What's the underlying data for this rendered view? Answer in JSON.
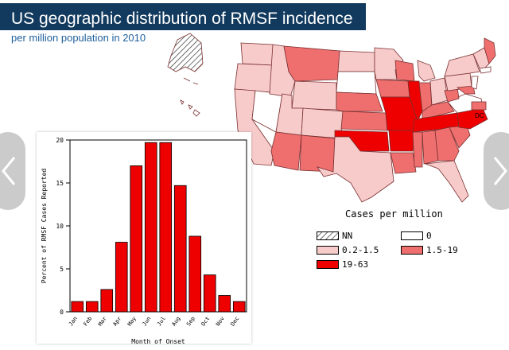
{
  "header": {
    "title": "US geographic distribution of RMSF incidence",
    "subtitle": "per million population in 2010"
  },
  "map": {
    "state_labels": {
      "dc": "DC"
    },
    "legend": {
      "title": "Cases per million",
      "items": [
        {
          "label": "NN",
          "color": "#ffffff",
          "hatched": true
        },
        {
          "label": "0",
          "color": "#ffffff"
        },
        {
          "label": "0.2-1.5",
          "color": "#f8cbcb"
        },
        {
          "label": "1.5-19",
          "color": "#ef6f6f"
        },
        {
          "label": "19-63",
          "color": "#ee0000"
        }
      ]
    }
  },
  "chart_data": {
    "type": "bar",
    "categories": [
      "Jan",
      "Feb",
      "Mar",
      "Apr",
      "May",
      "Jun",
      "Jul",
      "Aug",
      "Sep",
      "Oct",
      "Nov",
      "Dec"
    ],
    "values": [
      1.2,
      1.2,
      2.6,
      8.1,
      17.0,
      19.7,
      19.7,
      14.7,
      8.8,
      4.3,
      1.9,
      1.2
    ],
    "xlabel": "Month of Onset",
    "ylabel": "Percent of RMSF Cases Reported",
    "ylim": [
      0,
      20
    ],
    "yticks": [
      0,
      5,
      10,
      15,
      20
    ],
    "bar_color": "#ee0000",
    "grid": false
  },
  "navigation": {
    "prev_icon": "chevron-left-icon",
    "next_icon": "chevron-right-icon"
  }
}
